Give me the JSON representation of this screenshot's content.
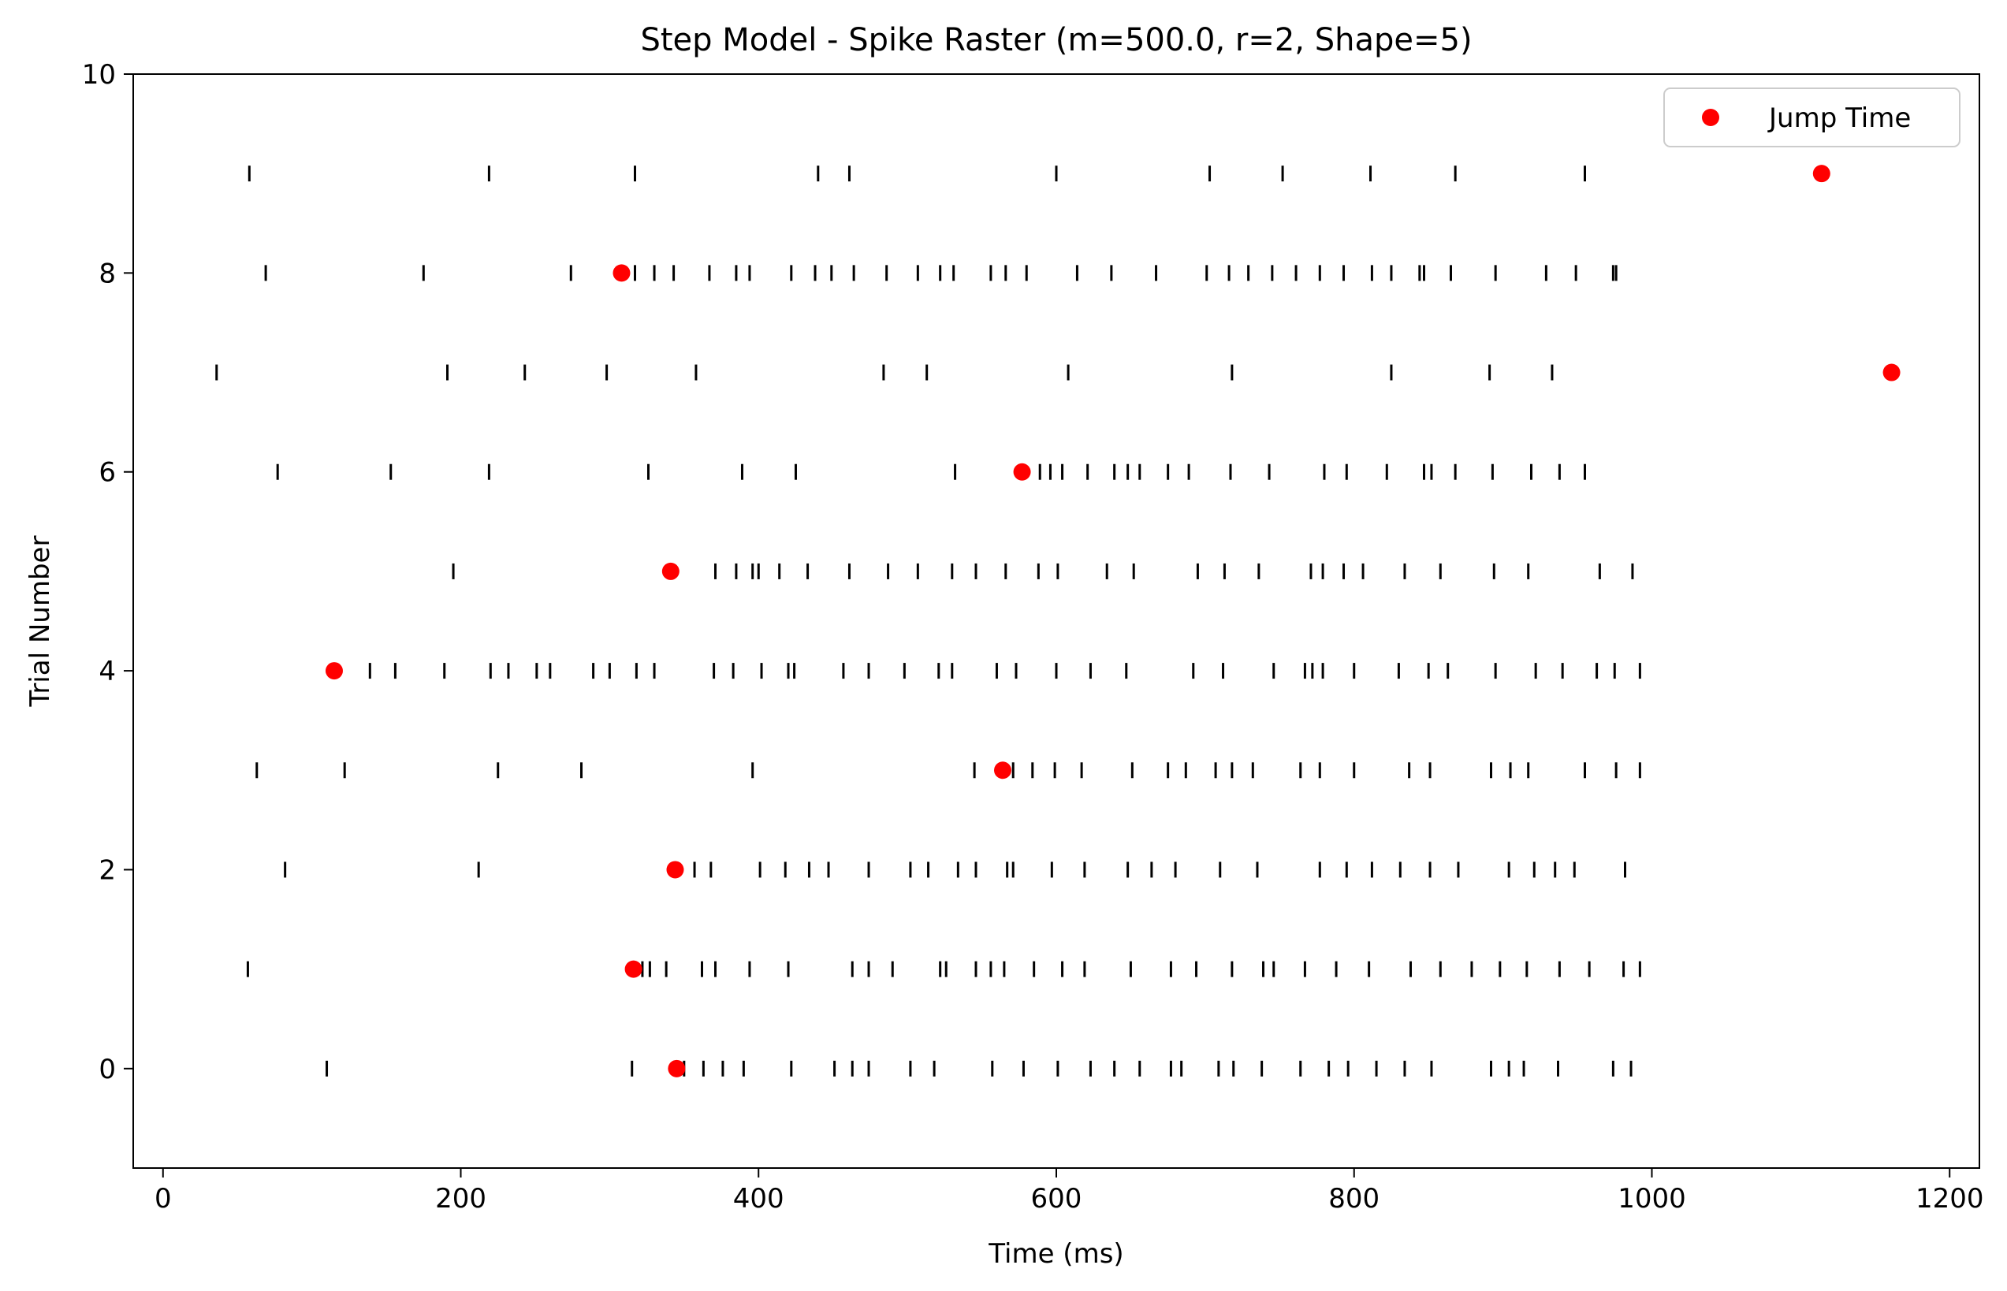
{
  "chart_data": {
    "type": "scatter",
    "title": "Step Model - Spike Raster (m=500.0, r=2, Shape=5)",
    "xlabel": "Time (ms)",
    "ylabel": "Trial Number",
    "xlim": [
      -20,
      1220
    ],
    "ylim": [
      -1,
      10
    ],
    "xticks": [
      0,
      200,
      400,
      600,
      800,
      1000,
      1200
    ],
    "yticks": [
      0,
      2,
      4,
      6,
      8,
      10
    ],
    "grid": false,
    "legend": {
      "position": "top-right",
      "entries": [
        {
          "label": "Jump Time",
          "color": "#ff0000",
          "marker": "circle"
        }
      ]
    },
    "colors": {
      "spike": "#000000",
      "jump": "#ff0000"
    },
    "trials": [
      {
        "trial": 0,
        "jump_time": 345,
        "spikes": [
          110,
          315,
          350,
          363,
          376,
          390,
          422,
          451,
          463,
          474,
          502,
          518,
          557,
          578,
          601,
          623,
          639,
          656,
          677,
          684,
          709,
          719,
          738,
          764,
          783,
          796,
          815,
          834,
          852,
          892,
          904,
          914,
          937,
          974,
          986
        ]
      },
      {
        "trial": 1,
        "jump_time": 316,
        "spikes": [
          57,
          322,
          327,
          338,
          362,
          371,
          394,
          420,
          463,
          474,
          490,
          522,
          526,
          546,
          556,
          565,
          585,
          604,
          619,
          650,
          677,
          694,
          718,
          739,
          746,
          767,
          788,
          810,
          838,
          858,
          879,
          898,
          916,
          938,
          958,
          981,
          992
        ]
      },
      {
        "trial": 2,
        "jump_time": 344,
        "spikes": [
          82,
          212,
          357,
          368,
          401,
          418,
          434,
          447,
          474,
          502,
          514,
          534,
          546,
          567,
          571,
          597,
          619,
          648,
          664,
          680,
          710,
          735,
          777,
          795,
          812,
          831,
          851,
          870,
          904,
          921,
          935,
          948,
          982
        ]
      },
      {
        "trial": 3,
        "jump_time": 564,
        "spikes": [
          63,
          122,
          225,
          281,
          396,
          545,
          571,
          584,
          599,
          617,
          651,
          675,
          687,
          707,
          718,
          732,
          764,
          777,
          800,
          837,
          851,
          892,
          905,
          917,
          955,
          976,
          992
        ]
      },
      {
        "trial": 4,
        "jump_time": 115,
        "spikes": [
          139,
          156,
          189,
          220,
          232,
          251,
          260,
          289,
          300,
          318,
          330,
          370,
          383,
          402,
          420,
          424,
          457,
          474,
          498,
          521,
          530,
          560,
          573,
          600,
          623,
          647,
          692,
          712,
          746,
          767,
          772,
          779,
          800,
          830,
          850,
          863,
          895,
          922,
          940,
          963,
          975,
          992
        ]
      },
      {
        "trial": 5,
        "jump_time": 341,
        "spikes": [
          195,
          371,
          385,
          396,
          400,
          414,
          433,
          461,
          487,
          507,
          530,
          546,
          566,
          588,
          601,
          634,
          652,
          695,
          713,
          736,
          771,
          779,
          793,
          806,
          834,
          858,
          894,
          917,
          965,
          987
        ]
      },
      {
        "trial": 6,
        "jump_time": 577,
        "spikes": [
          77,
          153,
          219,
          326,
          389,
          425,
          532,
          589,
          596,
          604,
          621,
          639,
          648,
          656,
          675,
          689,
          717,
          743,
          780,
          795,
          822,
          847,
          852,
          868,
          893,
          919,
          938,
          955
        ]
      },
      {
        "trial": 7,
        "jump_time": 1161,
        "spikes": [
          36,
          191,
          243,
          298,
          358,
          484,
          513,
          608,
          718,
          825,
          891,
          933
        ]
      },
      {
        "trial": 8,
        "jump_time": 308,
        "spikes": [
          69,
          175,
          274,
          317,
          330,
          343,
          367,
          385,
          394,
          422,
          438,
          449,
          464,
          486,
          507,
          522,
          531,
          556,
          566,
          580,
          614,
          637,
          667,
          701,
          716,
          729,
          745,
          761,
          777,
          793,
          812,
          825,
          844,
          847,
          865,
          895,
          929,
          949,
          974,
          976
        ]
      },
      {
        "trial": 9,
        "jump_time": 1114,
        "spikes": [
          58,
          219,
          317,
          440,
          461,
          600,
          703,
          752,
          811,
          868,
          955
        ]
      }
    ]
  }
}
